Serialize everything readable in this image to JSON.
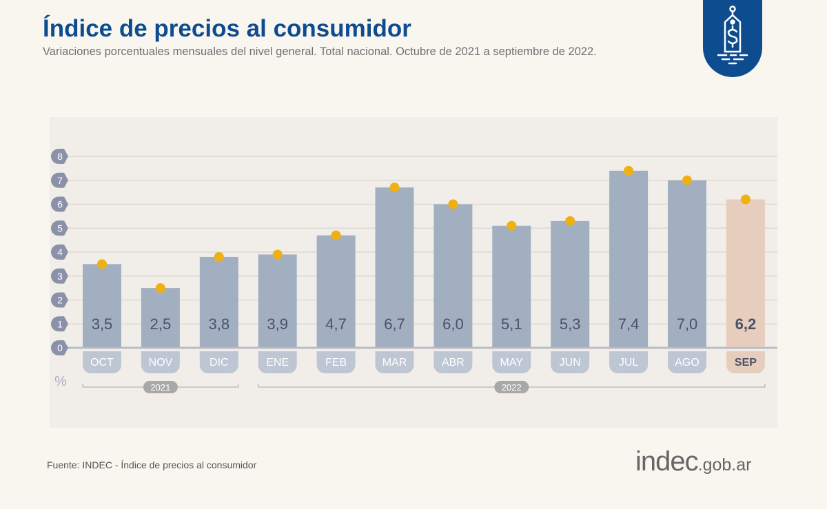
{
  "header": {
    "title": "Índice de precios al consumidor",
    "subtitle": "Variaciones porcentuales mensuales del nivel general. Total nacional. Octubre de 2021 a septiembre de 2022."
  },
  "badge_icon": "price-tag-dollar-icon",
  "footer": {
    "source": "Fuente: INDEC - Índice de precios al consumidor",
    "logo_main": "indec",
    "logo_suffix": ".gob.ar"
  },
  "colors": {
    "title": "#0d4c8f",
    "bar": "#a2afc1",
    "bar_highlight": "#e6cdbd",
    "dot": "#eeb111",
    "axis_badge": "#8a91a8"
  },
  "chart_data": {
    "type": "bar",
    "categories": [
      "OCT",
      "NOV",
      "DIC",
      "ENE",
      "FEB",
      "MAR",
      "ABR",
      "MAY",
      "JUN",
      "JUL",
      "AGO",
      "SEP"
    ],
    "values": [
      3.5,
      2.5,
      3.8,
      3.9,
      4.7,
      6.7,
      6.0,
      5.1,
      5.3,
      7.4,
      7.0,
      6.2
    ],
    "value_labels": [
      "3,5",
      "2,5",
      "3,8",
      "3,9",
      "4,7",
      "6,7",
      "6,0",
      "5,1",
      "5,3",
      "7,4",
      "7,0",
      "6,2"
    ],
    "highlighted": [
      "SEP"
    ],
    "yticks": [
      "0",
      "1",
      "2",
      "3",
      "4",
      "5",
      "6",
      "7",
      "8"
    ],
    "ylim": [
      0,
      8
    ],
    "yunit": "%",
    "groups": [
      {
        "label": "2021",
        "months": [
          "OCT",
          "NOV",
          "DIC"
        ]
      },
      {
        "label": "2022",
        "months": [
          "ENE",
          "FEB",
          "MAR",
          "ABR",
          "MAY",
          "JUN",
          "JUL",
          "AGO",
          "SEP"
        ]
      }
    ],
    "grid": true
  }
}
